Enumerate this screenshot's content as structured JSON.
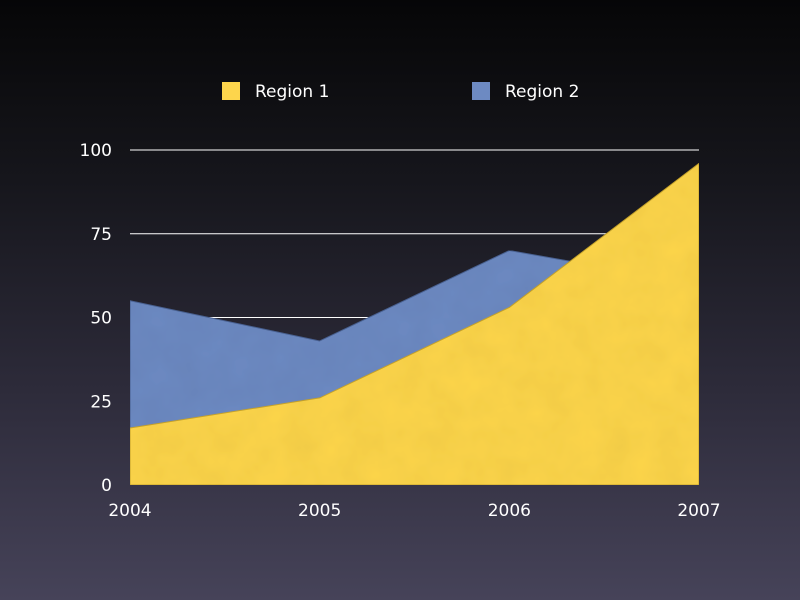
{
  "chart_data": {
    "type": "area",
    "categories": [
      "2004",
      "2005",
      "2006",
      "2007"
    ],
    "series": [
      {
        "name": "Region 1",
        "values": [
          17,
          26,
          53,
          96
        ],
        "color": "#fdd54c"
      },
      {
        "name": "Region 2",
        "values": [
          55,
          43,
          70,
          60
        ],
        "color": "#6d8ac2"
      }
    ],
    "title": "",
    "xlabel": "",
    "ylabel": "",
    "ylim": [
      0,
      100
    ],
    "yticks": [
      "0",
      "25",
      "50",
      "75",
      "100"
    ],
    "grid": true,
    "legend": "top"
  }
}
